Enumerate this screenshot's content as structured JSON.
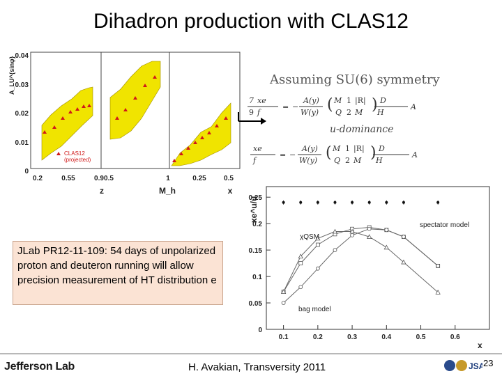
{
  "title": "Dihadron production with CLAS12",
  "left_figure": {
    "ylabel": "A_LU^{sinφ}",
    "y_ticks": [
      "0.04",
      "0.03",
      "0.02",
      "0.01",
      "0"
    ],
    "panels": [
      {
        "xlabel": "z",
        "x_ticks": [
          "0.2",
          "0.55",
          "0.9"
        ]
      },
      {
        "xlabel": "M_h",
        "x_ticks": [
          "0.5",
          "1"
        ]
      },
      {
        "xlabel": "x",
        "x_ticks": [
          "0.25",
          "0.5"
        ]
      }
    ],
    "legend_line1": "CLAS12",
    "legend_line2": "(projected)"
  },
  "note_text": "JLab PR12-11-109: 54 days of unpolarized proton and deuteron running will allow precision measurement of HT distribution e",
  "formula": {
    "heading": "Assuming SU(6) symmetry",
    "middle": "u-dominance"
  },
  "chart_data": {
    "type": "line",
    "title": "",
    "xlabel": "x",
    "ylabel": "xe^u/u",
    "xlim": [
      0.05,
      0.7
    ],
    "ylim": [
      0,
      0.27
    ],
    "x_ticks": [
      0.1,
      0.2,
      0.3,
      0.4,
      0.5,
      0.6
    ],
    "y_ticks": [
      0,
      0.05,
      0.1,
      0.15,
      0.2,
      0.25
    ],
    "x_tick_labels": [
      "0.1",
      "0.2",
      "0.3",
      "0.4",
      "0.5",
      "0.6"
    ],
    "y_tick_labels": [
      "0",
      "0.05",
      "0.1",
      "0.15",
      "0.2",
      "0.25"
    ],
    "annotations": [
      "spectator model",
      "χQSM",
      "bag model"
    ],
    "series": [
      {
        "name": "spectator model",
        "marker": "square",
        "x": [
          0.1,
          0.15,
          0.2,
          0.25,
          0.3,
          0.35,
          0.4,
          0.45,
          0.55
        ],
        "y": [
          0.071,
          0.125,
          0.16,
          0.18,
          0.19,
          0.193,
          0.188,
          0.175,
          0.12
        ]
      },
      {
        "name": "χQSM",
        "marker": "triangle",
        "x": [
          0.1,
          0.15,
          0.2,
          0.25,
          0.3,
          0.35,
          0.4,
          0.45,
          0.55
        ],
        "y": [
          0.071,
          0.138,
          0.172,
          0.185,
          0.185,
          0.175,
          0.155,
          0.127,
          0.07
        ]
      },
      {
        "name": "bag model",
        "marker": "circle",
        "x": [
          0.1,
          0.15,
          0.2,
          0.25,
          0.3,
          0.35,
          0.4,
          0.45,
          0.55
        ],
        "y": [
          0.05,
          0.08,
          0.115,
          0.15,
          0.178,
          0.19,
          0.188,
          0.175,
          0.12
        ]
      },
      {
        "name": "projected points",
        "marker": "dot",
        "x": [
          0.1,
          0.15,
          0.2,
          0.25,
          0.3,
          0.35,
          0.4,
          0.45,
          0.55
        ],
        "y": [
          0.24,
          0.24,
          0.24,
          0.24,
          0.24,
          0.24,
          0.24,
          0.24,
          0.24
        ]
      }
    ]
  },
  "footer": {
    "logo_text": "Jefferson Lab",
    "author": "H. Avakian, Transversity 2011",
    "slide_number": "23",
    "icon": "jlab-logo-icon"
  }
}
